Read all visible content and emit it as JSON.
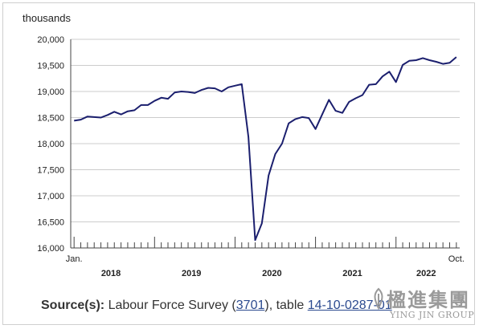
{
  "chart_data": {
    "type": "line",
    "ylabel": "thousands",
    "ylim": [
      16000,
      20000
    ],
    "yticks": [
      16000,
      16500,
      17000,
      17500,
      18000,
      18500,
      19000,
      19500,
      20000
    ],
    "ytick_labels": [
      "16,000",
      "16,500",
      "17,000",
      "17,500",
      "18,000",
      "18,500",
      "19,000",
      "19,500",
      "20,000"
    ],
    "start_label": "Jan.",
    "end_label": "Oct.",
    "year_labels": [
      "2018",
      "2019",
      "2020",
      "2021",
      "2022"
    ],
    "grid": "horizontal",
    "color": "#1b1f6e",
    "x": [
      "2018-01",
      "2018-02",
      "2018-03",
      "2018-04",
      "2018-05",
      "2018-06",
      "2018-07",
      "2018-08",
      "2018-09",
      "2018-10",
      "2018-11",
      "2018-12",
      "2019-01",
      "2019-02",
      "2019-03",
      "2019-04",
      "2019-05",
      "2019-06",
      "2019-07",
      "2019-08",
      "2019-09",
      "2019-10",
      "2019-11",
      "2019-12",
      "2020-01",
      "2020-02",
      "2020-03",
      "2020-04",
      "2020-05",
      "2020-06",
      "2020-07",
      "2020-08",
      "2020-09",
      "2020-10",
      "2020-11",
      "2020-12",
      "2021-01",
      "2021-02",
      "2021-03",
      "2021-04",
      "2021-05",
      "2021-06",
      "2021-07",
      "2021-08",
      "2021-09",
      "2021-10",
      "2021-11",
      "2021-12",
      "2022-01",
      "2022-02",
      "2022-03",
      "2022-04",
      "2022-05",
      "2022-06",
      "2022-07",
      "2022-08",
      "2022-09",
      "2022-10"
    ],
    "values": [
      18440,
      18460,
      18520,
      18510,
      18500,
      18550,
      18610,
      18560,
      18620,
      18640,
      18740,
      18740,
      18820,
      18880,
      18860,
      18980,
      19000,
      18990,
      18970,
      19030,
      19070,
      19060,
      19000,
      19080,
      19110,
      19140,
      18130,
      16150,
      16470,
      17390,
      17800,
      18000,
      18390,
      18470,
      18510,
      18490,
      18280,
      18560,
      18840,
      18630,
      18590,
      18800,
      18870,
      18930,
      19130,
      19140,
      19290,
      19380,
      19180,
      19510,
      19590,
      19600,
      19640,
      19600,
      19570,
      19530,
      19550,
      19660
    ]
  },
  "source": {
    "label": "Source(s):",
    "text_before": "Labour Force Survey (",
    "survey_link": "3701",
    "text_middle": "), table ",
    "table_link": "14-10-0287-01"
  },
  "logo": {
    "chinese": "楹進集團",
    "english": "YING JIN GROUP"
  }
}
